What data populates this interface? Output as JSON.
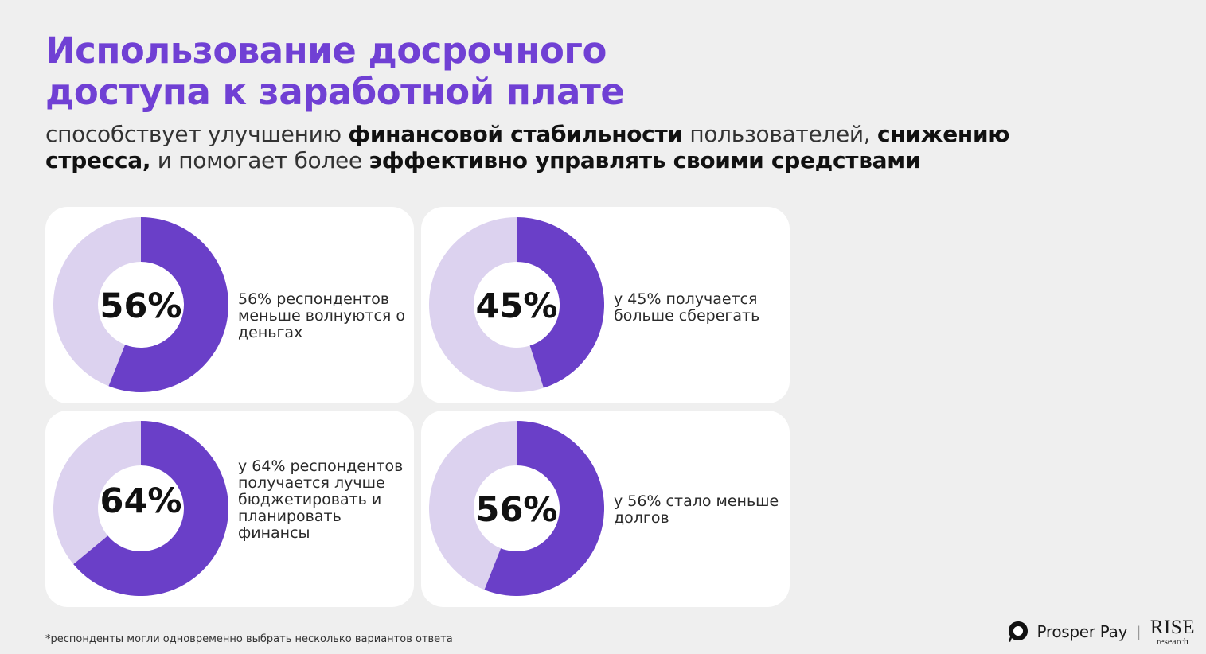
{
  "title": {
    "line1": "Использование досрочного",
    "line2": "доступа к заработной плате"
  },
  "subtitle": {
    "p1": "способствует улучшению ",
    "b1": "финансовой стабильности",
    "p2": " пользователей, ",
    "b2": "снижению стресса,",
    "p3": " и помогает более ",
    "b3": "эффективно управлять своими средствами"
  },
  "colors": {
    "filled": "#6a3fc8",
    "remainder": "#dcd2ef",
    "title": "#7040d4",
    "background": "#efefef",
    "card": "#ffffff"
  },
  "chart_data": [
    {
      "type": "pie",
      "variant": "donut",
      "value": 56,
      "label": "56%",
      "description": "56% респондентов меньше волнуются о деньгах"
    },
    {
      "type": "pie",
      "variant": "donut",
      "value": 45,
      "label": "45%",
      "description": "у 45% получается больше сберегать"
    },
    {
      "type": "pie",
      "variant": "donut",
      "value": 64,
      "label": "64%",
      "description": "у 64% респондентов получается лучше бюджетировать и планировать финансы"
    },
    {
      "type": "pie",
      "variant": "donut",
      "value": 56,
      "label": "56%",
      "description": "у 56% стало меньше долгов"
    }
  ],
  "footnote": "*респонденты могли одновременно выбрать несколько вариантов ответа",
  "logos": {
    "prosper": "Prosper Pay",
    "separator": "|",
    "rise_top": "RISE",
    "rise_bottom": "research",
    "prosper_mark": "prosper-pay-logo-icon"
  }
}
